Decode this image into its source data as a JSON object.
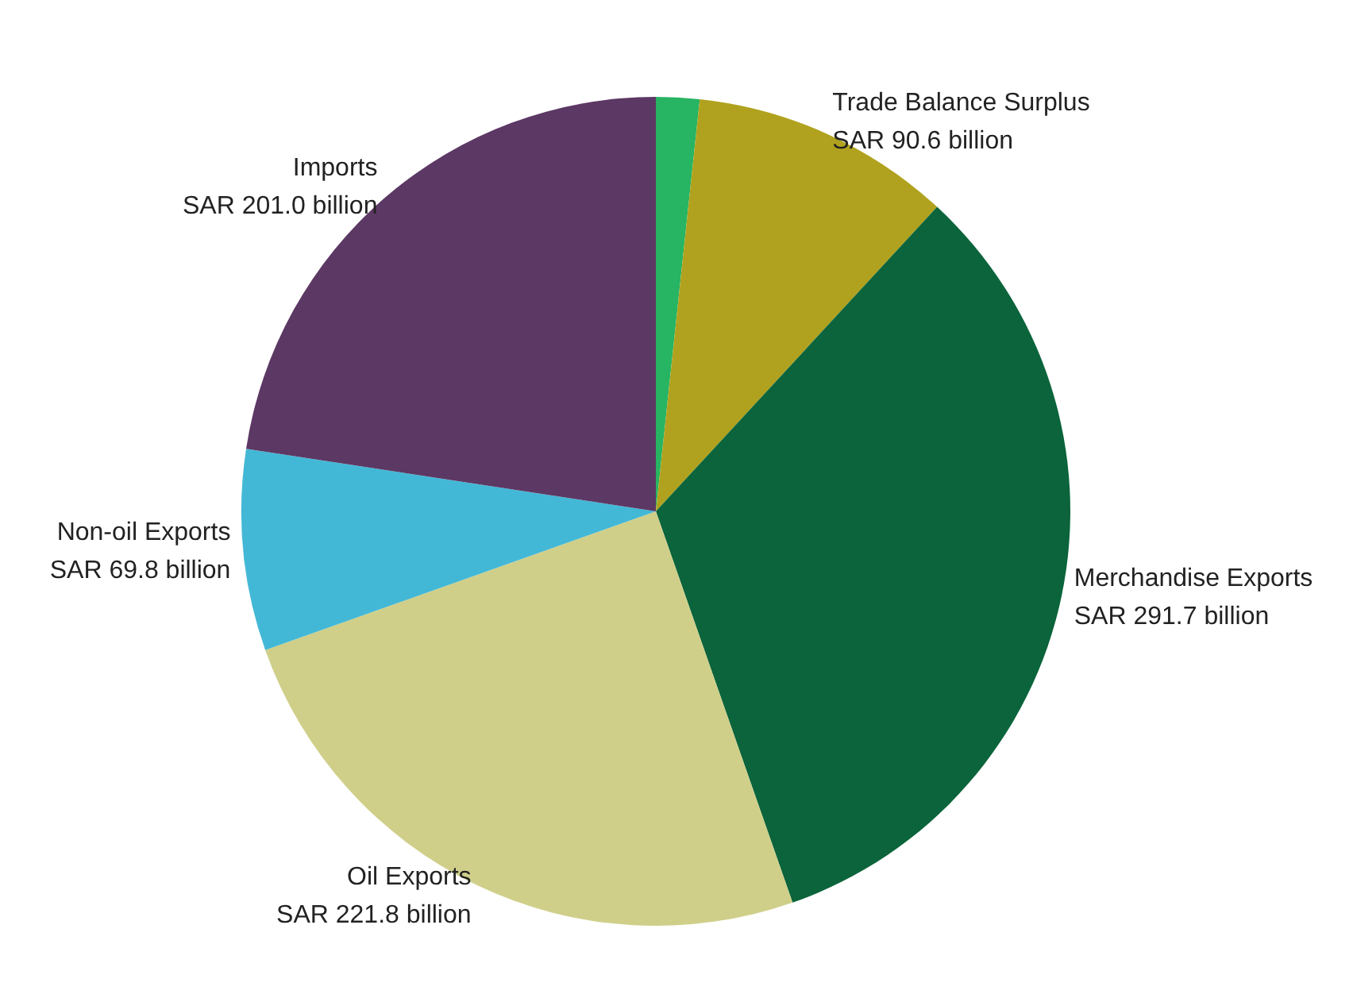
{
  "chart_data": {
    "type": "pie",
    "categories": [
      null,
      "Trade Balance Surplus",
      "Merchandise Exports",
      "Oil Exports",
      "Non-oil Exports",
      "Imports"
    ],
    "values": [
      1.69,
      10.18,
      32.78,
      24.92,
      7.84,
      22.59
    ],
    "value_labels": [
      null,
      "SAR 90.6 billion",
      "SAR 291.7 billion",
      "SAR 221.8 billion",
      "SAR 69.8 billion",
      "SAR 201.0 billion"
    ],
    "colors": [
      "#27b463",
      "#b0a21e",
      "#0b643b",
      "#cfcf8a",
      "#43b8d6",
      "#5c3864"
    ],
    "legend": false
  }
}
